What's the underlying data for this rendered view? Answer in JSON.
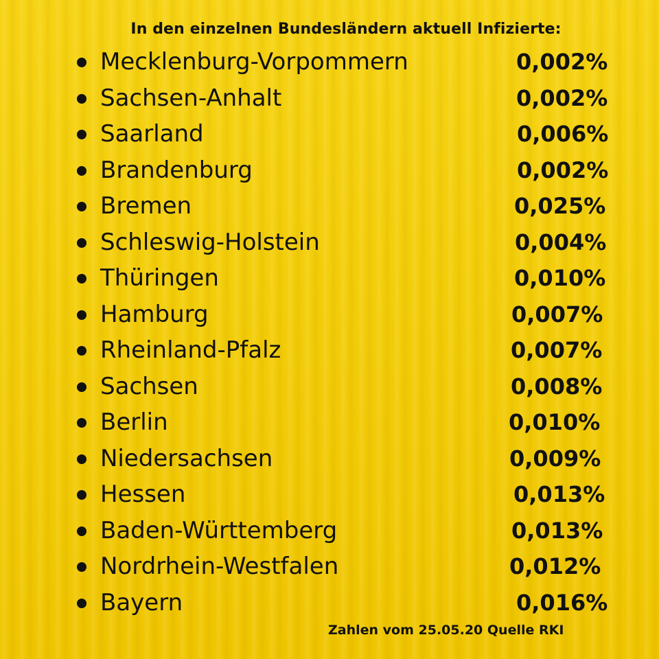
{
  "title": "In den einzelnen Bundesländern aktuell Infizierte:",
  "states": [
    {
      "name": "Mecklenburg-Vorpommern",
      "value": "0,002%"
    },
    {
      "name": "Sachsen-Anhalt",
      "value": "0,002%"
    },
    {
      "name": "Saarland",
      "value": "0,006%"
    },
    {
      "name": "Brandenburg",
      "value": "0,002%"
    },
    {
      "name": "Bremen",
      "value": "0,025%"
    },
    {
      "name": "Schleswig-Holstein",
      "value": "0,004%"
    },
    {
      "name": "Thüringen",
      "value": "0,010%"
    },
    {
      "name": "Hamburg",
      "value": "0,007%"
    },
    {
      "name": "Rheinland-Pfalz",
      "value": "0,007%"
    },
    {
      "name": "Sachsen",
      "value": "0,008%"
    },
    {
      "name": "Berlin",
      "value": "0,010%"
    },
    {
      "name": "Niedersachsen",
      "value": "0,009%"
    },
    {
      "name": "Hessen",
      "value": "0,013%"
    },
    {
      "name": "Baden-Württemberg",
      "value": "0,013%"
    },
    {
      "name": "Nordrhein-Westfalen",
      "value": "0,012%"
    },
    {
      "name": "Bayern",
      "value": "0,016%"
    }
  ],
  "footer": "Zahlen vom 25.05.20 Quelle RKI",
  "colors": {
    "background": "#f2cc05",
    "text": "#111111"
  }
}
